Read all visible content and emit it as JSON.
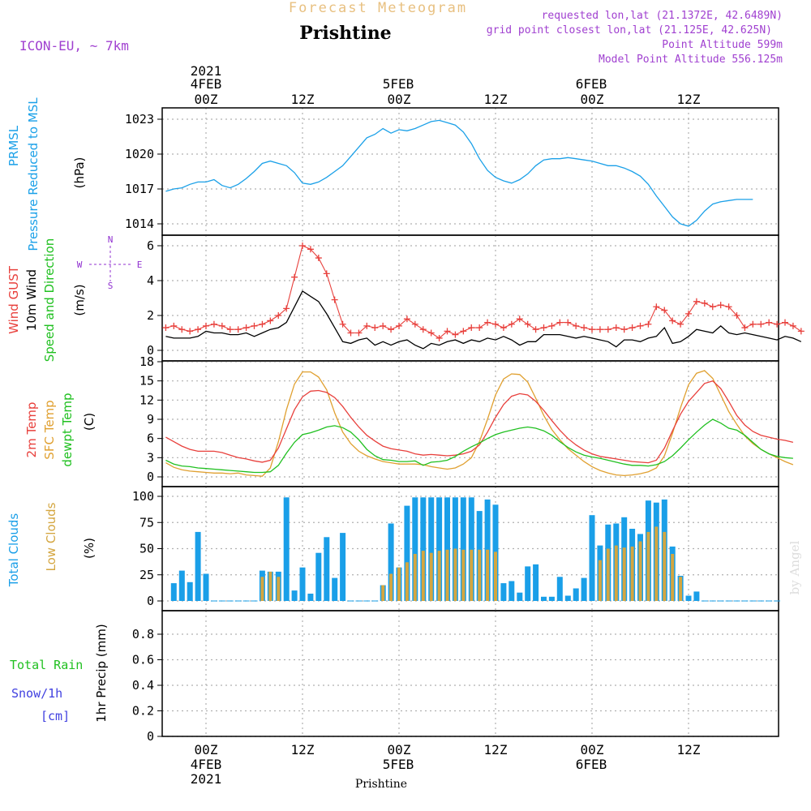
{
  "header": {
    "product": "Forecast Meteogram",
    "location": "Prishtine",
    "model": "ICON-EU, ~ 7km",
    "requested": "requested lon,lat (21.1372E, 42.6489N)",
    "closest": "grid point closest lon,lat (21.125E, 42.625N)",
    "point_alt": "Point Altitude 599m",
    "model_alt": "Model Point Altitude 556.125m",
    "credit": "by Angel",
    "footer": "Prishtine"
  },
  "colors": {
    "pressure": "#1aa0e8",
    "gust": "#e8403c",
    "wind10m": "#000000",
    "temp2m": "#e8403c",
    "sfc": "#e0a030",
    "dewpt": "#20c020",
    "total_clouds": "#1a9fe8",
    "low_clouds": "#d4a640",
    "rain": "#20c020",
    "snow": "#4040e0",
    "compass": "#9030d0",
    "title_product": "#e8c080",
    "meta": "#a040d0"
  },
  "chart_data": [
    {
      "id": "pressure",
      "type": "line",
      "title": "",
      "ylabel": "PRMSL Pressure Reduced to MSL",
      "yunits": "(hPa)",
      "ylim": [
        1013,
        1024
      ],
      "yticks": [
        1014,
        1017,
        1020,
        1023
      ],
      "x_start_hour": -5,
      "x_step_hour": 1,
      "series": [
        {
          "name": "PRMSL Pressure Reduced to MSL",
          "values": [
            1016.8,
            1017.0,
            1017.1,
            1017.4,
            1017.6,
            1017.6,
            1017.8,
            1017.3,
            1017.1,
            1017.4,
            1017.9,
            1018.5,
            1019.2,
            1019.4,
            1019.2,
            1019.0,
            1018.4,
            1017.5,
            1017.4,
            1017.6,
            1018.0,
            1018.5,
            1019.0,
            1019.8,
            1020.6,
            1021.4,
            1021.7,
            1022.2,
            1021.8,
            1022.1,
            1022.0,
            1022.2,
            1022.5,
            1022.8,
            1022.9,
            1022.7,
            1022.5,
            1021.9,
            1020.9,
            1019.6,
            1018.6,
            1018.0,
            1017.7,
            1017.5,
            1017.8,
            1018.3,
            1019.0,
            1019.5,
            1019.6,
            1019.6,
            1019.7,
            1019.6,
            1019.5,
            1019.4,
            1019.2,
            1019.0,
            1019.0,
            1018.8,
            1018.5,
            1018.1,
            1017.4,
            1016.4,
            1015.5,
            1014.6,
            1014.0,
            1013.8,
            1014.3,
            1015.1,
            1015.7,
            1015.9,
            1016.0,
            1016.1,
            1016.1,
            1016.1
          ]
        }
      ]
    },
    {
      "id": "wind",
      "type": "line",
      "title": "",
      "ylabel_gust": "Wind GUST",
      "ylabel_wind": "10m Wind",
      "ylabel_dir": "Speed and Direction",
      "yunits": "(m/s)",
      "ylim": [
        0,
        6.5
      ],
      "yticks": [
        0,
        2,
        4,
        6
      ],
      "compass": {
        "n": "N",
        "s": "S",
        "w": "W",
        "e": "E"
      },
      "x_start_hour": -5,
      "x_step_hour": 1,
      "series": [
        {
          "name": "Wind GUST",
          "values": [
            1.3,
            1.4,
            1.2,
            1.1,
            1.2,
            1.4,
            1.5,
            1.4,
            1.2,
            1.2,
            1.3,
            1.4,
            1.5,
            1.7,
            2.0,
            2.4,
            4.2,
            6.0,
            5.8,
            5.3,
            4.4,
            2.9,
            1.5,
            1.0,
            1.0,
            1.4,
            1.3,
            1.4,
            1.2,
            1.4,
            1.8,
            1.5,
            1.2,
            1.0,
            0.7,
            1.1,
            0.9,
            1.1,
            1.3,
            1.3,
            1.6,
            1.5,
            1.3,
            1.5,
            1.8,
            1.5,
            1.2,
            1.3,
            1.4,
            1.6,
            1.6,
            1.4,
            1.3,
            1.2,
            1.2,
            1.2,
            1.3,
            1.2,
            1.3,
            1.4,
            1.5,
            2.5,
            2.3,
            1.7,
            1.5,
            2.1,
            2.8,
            2.7,
            2.5,
            2.6,
            2.5,
            2.0,
            1.3,
            1.5,
            1.5,
            1.6,
            1.5,
            1.6,
            1.4,
            1.1
          ]
        },
        {
          "name": "10m Wind",
          "values": [
            0.8,
            0.7,
            0.7,
            0.7,
            0.8,
            1.1,
            1.0,
            1.0,
            0.9,
            0.9,
            1.0,
            0.8,
            1.0,
            1.2,
            1.3,
            1.6,
            2.5,
            3.4,
            3.1,
            2.8,
            2.1,
            1.3,
            0.5,
            0.4,
            0.6,
            0.7,
            0.3,
            0.5,
            0.3,
            0.5,
            0.6,
            0.3,
            0.1,
            0.4,
            0.3,
            0.5,
            0.6,
            0.4,
            0.6,
            0.5,
            0.7,
            0.6,
            0.8,
            0.6,
            0.3,
            0.5,
            0.5,
            0.9,
            0.9,
            0.9,
            0.8,
            0.7,
            0.8,
            0.7,
            0.6,
            0.5,
            0.2,
            0.6,
            0.6,
            0.5,
            0.7,
            0.8,
            1.3,
            0.4,
            0.5,
            0.8,
            1.2,
            1.1,
            1.0,
            1.4,
            1.0,
            0.9,
            1.0,
            0.9,
            0.8,
            0.7,
            0.6,
            0.8,
            0.7,
            0.5
          ]
        }
      ]
    },
    {
      "id": "temperature",
      "type": "line",
      "title": "",
      "ylabel_t2m": "2m Temp",
      "ylabel_sfc": "SFC Temp",
      "ylabel_dew": "dewpt Temp",
      "yunits": "(C)",
      "ylim": [
        0,
        18
      ],
      "yticks": [
        0,
        3,
        6,
        9,
        12,
        15,
        18
      ],
      "x_start_hour": -5,
      "x_step_hour": 1,
      "series": [
        {
          "name": "2m Temp",
          "values": [
            6.2,
            5.5,
            4.8,
            4.3,
            4.0,
            4.0,
            4.0,
            3.8,
            3.4,
            3.0,
            2.8,
            2.5,
            2.3,
            2.6,
            4.5,
            7.5,
            10.5,
            12.5,
            13.4,
            13.5,
            13.2,
            12.4,
            11.0,
            9.3,
            7.8,
            6.5,
            5.6,
            4.8,
            4.4,
            4.2,
            4.0,
            3.6,
            3.4,
            3.5,
            3.4,
            3.3,
            3.4,
            3.6,
            4.0,
            5.0,
            7.0,
            9.3,
            11.3,
            12.6,
            13.0,
            12.8,
            11.8,
            10.4,
            8.8,
            7.3,
            6.0,
            5.0,
            4.2,
            3.6,
            3.2,
            3.0,
            2.8,
            2.6,
            2.4,
            2.3,
            2.2,
            2.6,
            4.5,
            7.2,
            9.8,
            11.8,
            13.2,
            14.6,
            15.0,
            13.8,
            11.8,
            9.6,
            8.1,
            7.1,
            6.5,
            6.2,
            5.9,
            5.7,
            5.4
          ]
        },
        {
          "name": "SFC Temp",
          "values": [
            2.2,
            1.5,
            1.1,
            0.9,
            0.8,
            0.7,
            0.6,
            0.6,
            0.5,
            0.6,
            0.3,
            0.2,
            0.1,
            1.4,
            5.5,
            10.5,
            14.5,
            16.4,
            16.4,
            15.6,
            13.6,
            10.0,
            7.0,
            5.2,
            4.0,
            3.3,
            2.8,
            2.4,
            2.2,
            2.0,
            2.0,
            2.0,
            1.9,
            1.6,
            1.4,
            1.2,
            1.4,
            2.0,
            3.0,
            5.5,
            9.0,
            12.8,
            15.3,
            16.1,
            16.0,
            14.8,
            12.3,
            9.6,
            7.4,
            5.8,
            4.4,
            3.4,
            2.4,
            1.6,
            1.0,
            0.6,
            0.3,
            0.2,
            0.3,
            0.5,
            0.8,
            1.4,
            3.3,
            6.8,
            10.8,
            14.4,
            16.2,
            16.6,
            15.4,
            12.8,
            10.2,
            8.2,
            6.4,
            5.2,
            4.3,
            3.6,
            3.0,
            2.4,
            1.9
          ]
        },
        {
          "name": "dewpt Temp",
          "values": [
            2.6,
            2.0,
            1.7,
            1.6,
            1.4,
            1.3,
            1.2,
            1.1,
            1.0,
            0.9,
            0.8,
            0.7,
            0.7,
            0.8,
            1.8,
            3.7,
            5.4,
            6.6,
            6.9,
            7.3,
            7.8,
            8.0,
            7.7,
            7.0,
            5.8,
            4.3,
            3.3,
            2.7,
            2.6,
            2.4,
            2.4,
            2.5,
            1.8,
            2.3,
            2.4,
            2.6,
            3.2,
            4.0,
            4.7,
            5.3,
            6.0,
            6.6,
            7.0,
            7.3,
            7.6,
            7.8,
            7.6,
            7.2,
            6.5,
            5.5,
            4.6,
            3.9,
            3.4,
            3.1,
            2.9,
            2.6,
            2.3,
            2.0,
            1.8,
            1.8,
            1.7,
            1.9,
            2.4,
            3.3,
            4.5,
            5.8,
            7.0,
            8.1,
            9.0,
            8.4,
            7.6,
            7.3,
            6.5,
            5.4,
            4.3,
            3.6,
            3.2,
            3.0,
            2.9
          ]
        }
      ]
    },
    {
      "id": "clouds",
      "type": "bar",
      "title": "",
      "ylabel_total": "Total Clouds",
      "ylabel_low": "Low Clouds",
      "yunits": "(%)",
      "ylim": [
        0,
        100
      ],
      "yticks": [
        0,
        25,
        50,
        75,
        100
      ],
      "x_start_hour": -4,
      "x_step_hour": 1,
      "series": [
        {
          "name": "Total Clouds",
          "values": [
            17,
            29,
            18,
            66,
            26,
            0,
            0,
            0,
            0,
            0,
            0,
            29,
            28,
            28,
            99,
            10,
            32,
            7,
            46,
            61,
            22,
            65,
            0,
            0,
            0,
            0,
            15,
            74,
            32,
            91,
            99,
            99,
            99,
            99,
            99,
            99,
            99,
            99,
            86,
            97,
            92,
            17,
            19,
            8,
            33,
            35,
            4,
            4,
            23,
            5,
            12,
            22,
            82,
            53,
            73,
            74,
            80,
            69,
            64,
            96,
            94,
            97,
            52,
            24,
            5,
            9,
            0,
            0,
            0,
            0,
            0,
            0,
            0,
            0,
            0,
            0
          ]
        },
        {
          "name": "Low Clouds",
          "values": [
            0,
            0,
            0,
            0,
            0,
            0,
            0,
            0,
            0,
            0,
            0,
            23,
            28,
            23,
            0,
            0,
            0,
            0,
            0,
            0,
            0,
            0,
            0,
            0,
            0,
            0,
            15,
            26,
            32,
            37,
            45,
            48,
            46,
            48,
            49,
            50,
            49,
            49,
            49,
            49,
            47,
            0,
            0,
            0,
            0,
            0,
            0,
            0,
            0,
            0,
            0,
            0,
            0,
            39,
            50,
            53,
            51,
            52,
            57,
            66,
            71,
            66,
            45,
            23,
            0,
            0,
            0,
            0,
            0,
            0,
            0,
            0,
            0,
            0,
            0,
            0
          ]
        }
      ]
    },
    {
      "id": "precip",
      "type": "bar",
      "title": "",
      "ylabel": "1hr Precip (mm)",
      "legend_rain": "Total Rain",
      "legend_snow": "Snow/1h",
      "legend_snow_units": "[cm]",
      "ylim": [
        0,
        1
      ],
      "yticks": [
        0,
        0.2,
        0.4,
        0.6,
        0.8
      ],
      "ytick_labels": [
        "0",
        "0.2",
        "0.4",
        "0.6",
        "0.8"
      ],
      "series": [
        {
          "name": "Total Rain",
          "values": []
        },
        {
          "name": "Snow/1h",
          "values": []
        }
      ]
    }
  ],
  "xaxis": {
    "ticks": [
      {
        "hour": 0,
        "label": "00Z",
        "date": "4FEB",
        "year": "2021"
      },
      {
        "hour": 12,
        "label": "12Z",
        "date": "",
        "year": ""
      },
      {
        "hour": 24,
        "label": "00Z",
        "date": "5FEB",
        "year": ""
      },
      {
        "hour": 36,
        "label": "12Z",
        "date": "",
        "year": ""
      },
      {
        "hour": 48,
        "label": "00Z",
        "date": "6FEB",
        "year": ""
      },
      {
        "hour": 60,
        "label": "12Z",
        "date": "",
        "year": ""
      }
    ]
  }
}
